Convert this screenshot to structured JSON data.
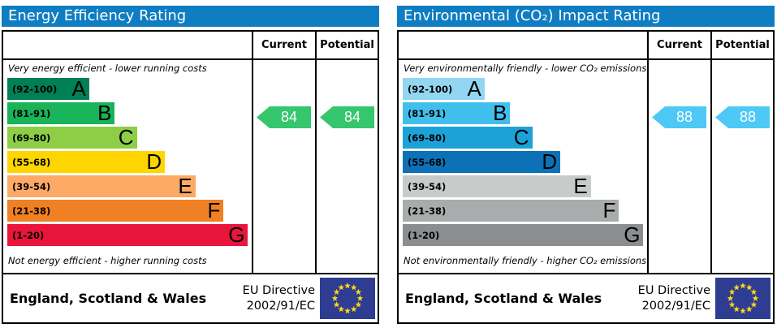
{
  "colors": {
    "header_bg": "#0f7dc2",
    "border": "#000000",
    "flag_bg": "#2e3d91",
    "flag_star": "#ffd617"
  },
  "panels": [
    {
      "title": "Energy Efficiency Rating",
      "col_current": "Current",
      "col_potential": "Potential",
      "note_top": "Very energy efficient - lower running costs",
      "note_bottom": "Not energy efficient - higher running costs",
      "bands": [
        {
          "letter": "A",
          "range": "(92-100)",
          "color": "#008054",
          "width_pct": 33.5
        },
        {
          "letter": "B",
          "range": "(81-91)",
          "color": "#19b459",
          "width_pct": 44
        },
        {
          "letter": "C",
          "range": "(69-80)",
          "color": "#8dce46",
          "width_pct": 53
        },
        {
          "letter": "D",
          "range": "(55-68)",
          "color": "#ffd500",
          "width_pct": 64.5
        },
        {
          "letter": "E",
          "range": "(39-54)",
          "color": "#fcaa65",
          "width_pct": 77
        },
        {
          "letter": "F",
          "range": "(21-38)",
          "color": "#ef8023",
          "width_pct": 88.5
        },
        {
          "letter": "G",
          "range": "(1-20)",
          "color": "#e9153b",
          "width_pct": 98.5
        }
      ],
      "current": {
        "value": 84,
        "band_index": 1,
        "color": "#35c66e"
      },
      "potential": {
        "value": 84,
        "band_index": 1,
        "color": "#35c66e"
      },
      "footer_region": "England, Scotland & Wales",
      "directive_line1": "EU Directive",
      "directive_line2": "2002/91/EC"
    },
    {
      "title": "Environmental (CO₂) Impact Rating",
      "col_current": "Current",
      "col_potential": "Potential",
      "note_top": "Very environmentally friendly - lower CO₂ emissions",
      "note_bottom": "Not environmentally friendly - higher CO₂ emissions",
      "bands": [
        {
          "letter": "A",
          "range": "(92-100)",
          "color": "#92d6f2",
          "width_pct": 33.5
        },
        {
          "letter": "B",
          "range": "(81-91)",
          "color": "#41bfec",
          "width_pct": 44
        },
        {
          "letter": "C",
          "range": "(69-80)",
          "color": "#1da2d8",
          "width_pct": 53
        },
        {
          "letter": "D",
          "range": "(55-68)",
          "color": "#0c71b6",
          "width_pct": 64.5
        },
        {
          "letter": "E",
          "range": "(39-54)",
          "color": "#c8cbca",
          "width_pct": 77
        },
        {
          "letter": "F",
          "range": "(21-38)",
          "color": "#a9acac",
          "width_pct": 88.5
        },
        {
          "letter": "G",
          "range": "(1-20)",
          "color": "#8b8e90",
          "width_pct": 98.5
        }
      ],
      "current": {
        "value": 88,
        "band_index": 1,
        "color": "#4ec9f5"
      },
      "potential": {
        "value": 88,
        "band_index": 1,
        "color": "#4ec9f5"
      },
      "footer_region": "England, Scotland & Wales",
      "directive_line1": "EU Directive",
      "directive_line2": "2002/91/EC"
    }
  ],
  "chart_data": [
    {
      "type": "bar",
      "title": "Energy Efficiency Rating",
      "categories": [
        "A (92-100)",
        "B (81-91)",
        "C (69-80)",
        "D (55-68)",
        "E (39-54)",
        "F (21-38)",
        "G (1-20)"
      ],
      "current": 84,
      "potential": 84,
      "current_band": "B",
      "potential_band": "B",
      "top_annotation": "Very energy efficient - lower running costs",
      "bottom_annotation": "Not energy efficient - higher running costs",
      "region": "England, Scotland & Wales",
      "directive": "EU Directive 2002/91/EC"
    },
    {
      "type": "bar",
      "title": "Environmental (CO₂) Impact Rating",
      "categories": [
        "A (92-100)",
        "B (81-91)",
        "C (69-80)",
        "D (55-68)",
        "E (39-54)",
        "F (21-38)",
        "G (1-20)"
      ],
      "current": 88,
      "potential": 88,
      "current_band": "B",
      "potential_band": "B",
      "top_annotation": "Very environmentally friendly - lower CO₂ emissions",
      "bottom_annotation": "Not environmentally friendly - higher CO₂ emissions",
      "region": "England, Scotland & Wales",
      "directive": "EU Directive 2002/91/EC"
    }
  ]
}
